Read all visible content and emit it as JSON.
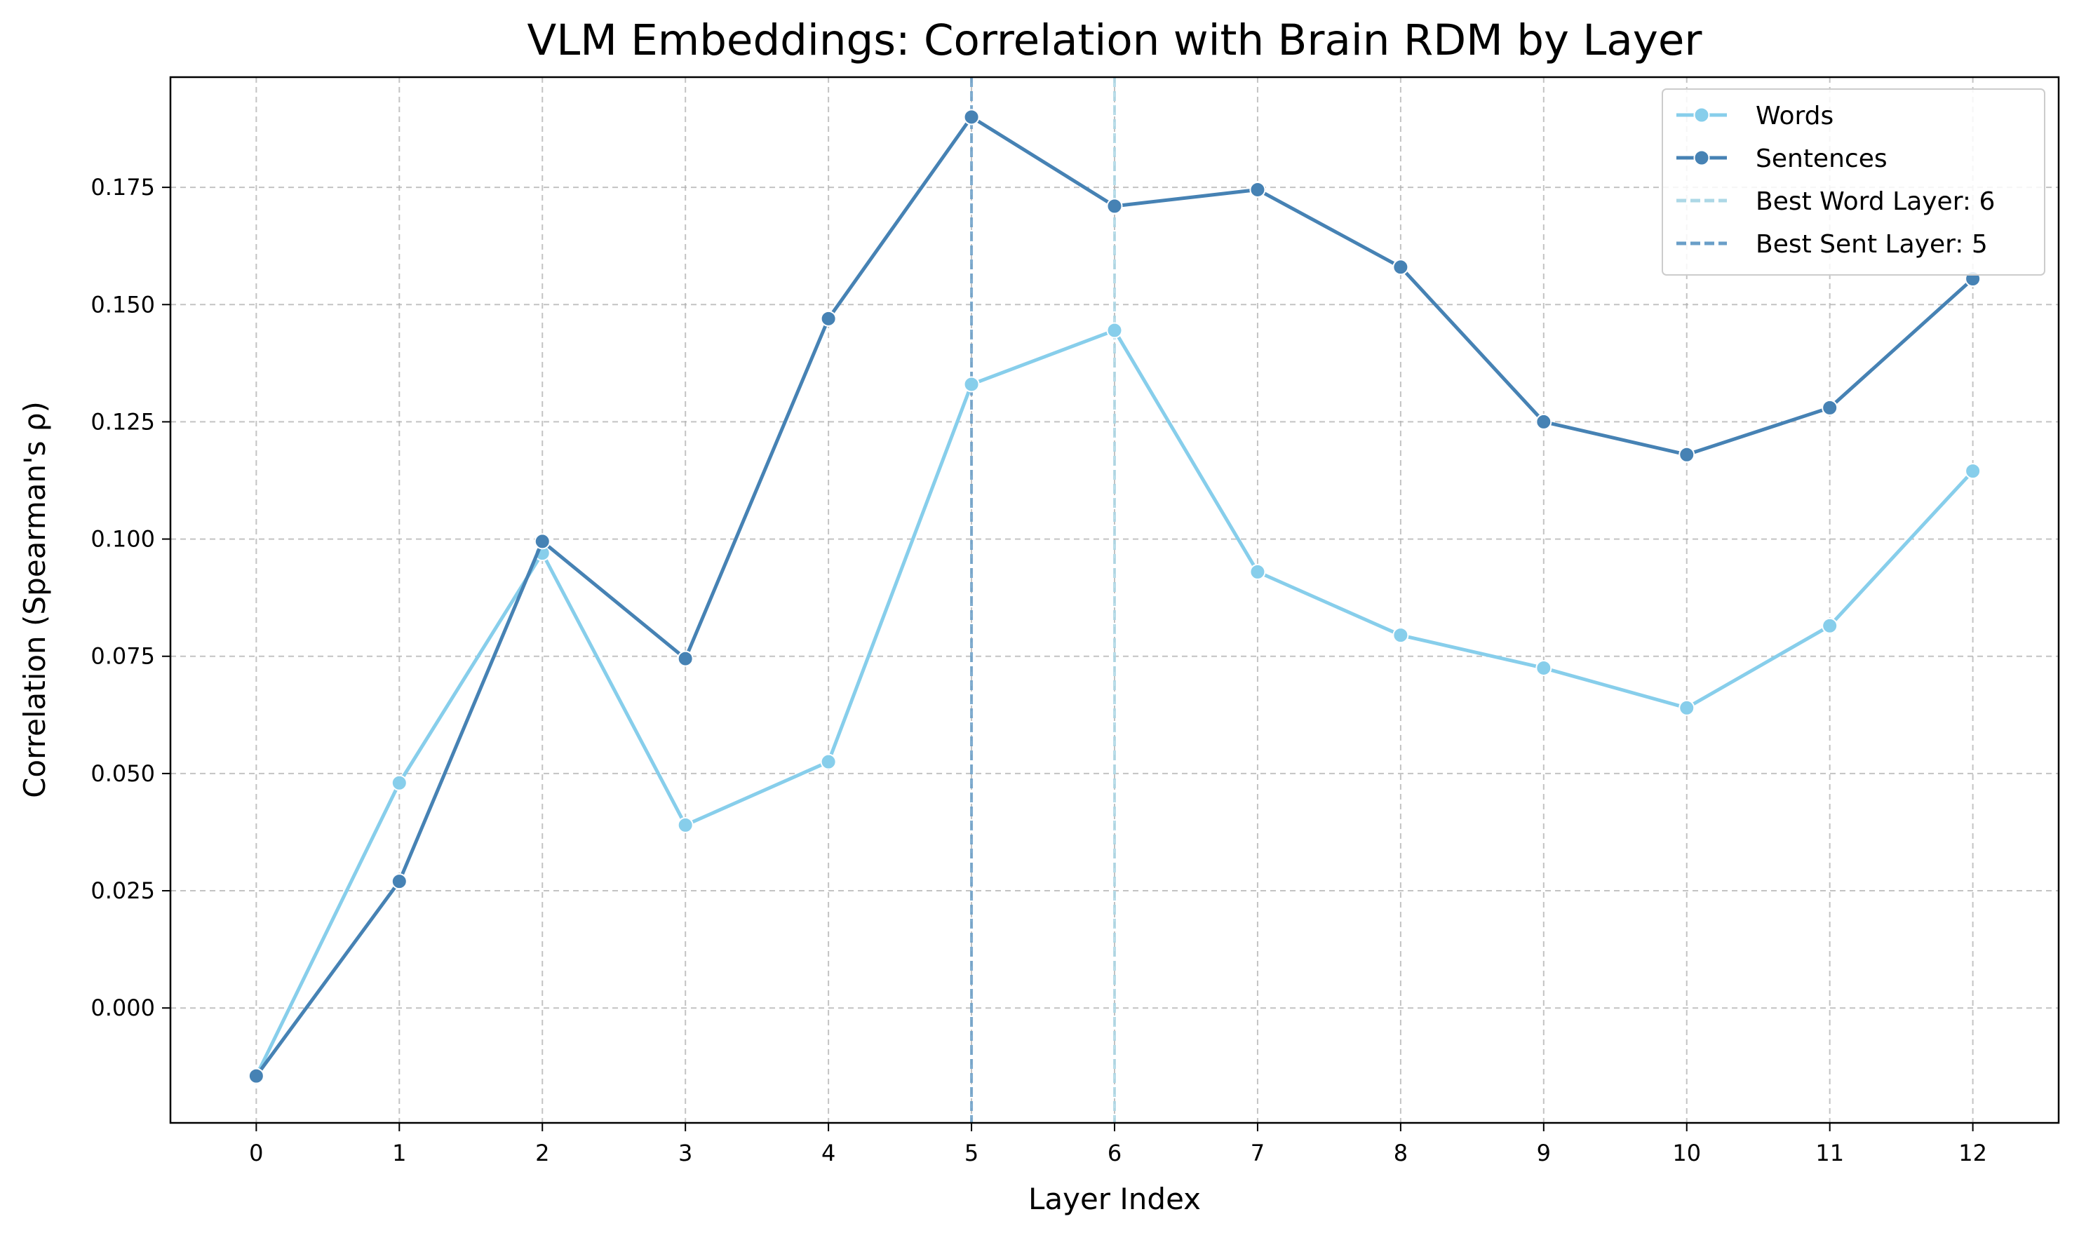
{
  "chart_data": {
    "type": "line",
    "title": "VLM Embeddings: Correlation with Brain RDM by Layer",
    "xlabel": "Layer Index",
    "ylabel": "Correlation (Spearman's ρ)",
    "x": [
      0,
      1,
      2,
      3,
      4,
      5,
      6,
      7,
      8,
      9,
      10,
      11,
      12
    ],
    "xlim": [
      -0.6,
      12.6
    ],
    "ylim": [
      -0.0245,
      0.1985
    ],
    "yticks": [
      0.0,
      0.025,
      0.05,
      0.075,
      0.1,
      0.125,
      0.15,
      0.175
    ],
    "ytick_labels": [
      "0.000",
      "0.025",
      "0.050",
      "0.075",
      "0.100",
      "0.125",
      "0.150",
      "0.175"
    ],
    "xtick_labels": [
      "0",
      "1",
      "2",
      "3",
      "4",
      "5",
      "6",
      "7",
      "8",
      "9",
      "10",
      "11",
      "12"
    ],
    "grid": true,
    "legend_position": "top-right",
    "series": [
      {
        "name": "Words",
        "color": "#87CEEB",
        "values": [
          -0.0145,
          0.048,
          0.097,
          0.039,
          0.0525,
          0.133,
          0.1445,
          0.093,
          0.0795,
          0.0725,
          0.064,
          0.0815,
          0.1145
        ]
      },
      {
        "name": "Sentences",
        "color": "#4682B4",
        "values": [
          -0.0145,
          0.027,
          0.0995,
          0.0745,
          0.147,
          0.19,
          0.171,
          0.1745,
          0.158,
          0.125,
          0.118,
          0.128,
          0.1555
        ]
      }
    ],
    "vlines": [
      {
        "name": "Best Word Layer: 6",
        "x": 6,
        "color": "#ADD8E6"
      },
      {
        "name": "Best Sent Layer: 5",
        "x": 5,
        "color": "#6A9FC8"
      }
    ]
  }
}
